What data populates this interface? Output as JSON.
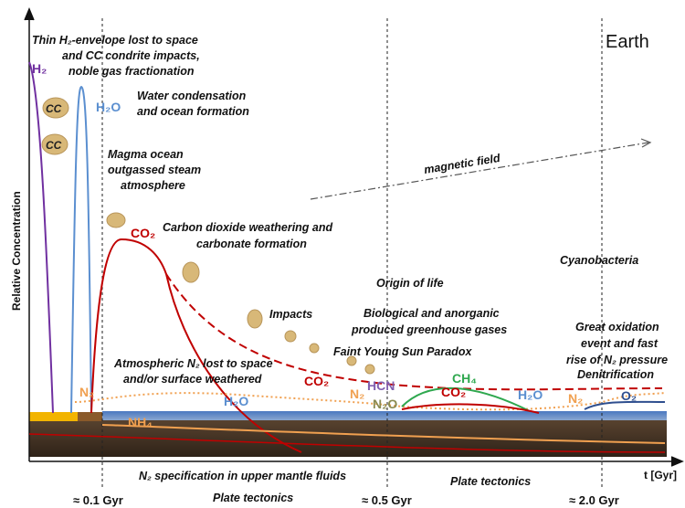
{
  "title": "Earth",
  "axes": {
    "y_label": "Relative Concentration",
    "x_label": "t [Gyr]"
  },
  "time_marks": [
    "≈ 0.1 Gyr",
    "≈ 0.5 Gyr",
    "≈ 2.0 Gyr"
  ],
  "annotations": [
    "Thin H₂-envelope lost to space",
    "and CC condrite impacts,",
    "noble gas fractionation",
    "Water condensation",
    "and ocean formation",
    "Magma ocean",
    "outgassed steam",
    "atmosphere",
    "Carbon dioxide weathering and",
    "carbonate formation",
    "magnetic field",
    "Origin of life",
    "Cyanobacteria",
    "Impacts",
    "Biological and anorganic",
    "produced greenhouse gases",
    "Faint Young Sun Paradox",
    "Great oxidation",
    "event and fast",
    "rise of N₂ pressure",
    "Denitrification",
    "Atmospheric N₂ lost to space",
    "and/or surface weathered",
    "N₂ specification in upper mantle fluids",
    "Plate tectonics",
    "Plate tectonics"
  ],
  "species": [
    "H₂",
    "CC",
    "CC",
    "H₂O",
    "CO₂",
    "N₂",
    "NH₄",
    "H₂O",
    "CO₂",
    "N₂",
    "HCN",
    "N₂O",
    "CH₄",
    "CO₂",
    "H₂O",
    "N₂",
    "O₂"
  ]
}
